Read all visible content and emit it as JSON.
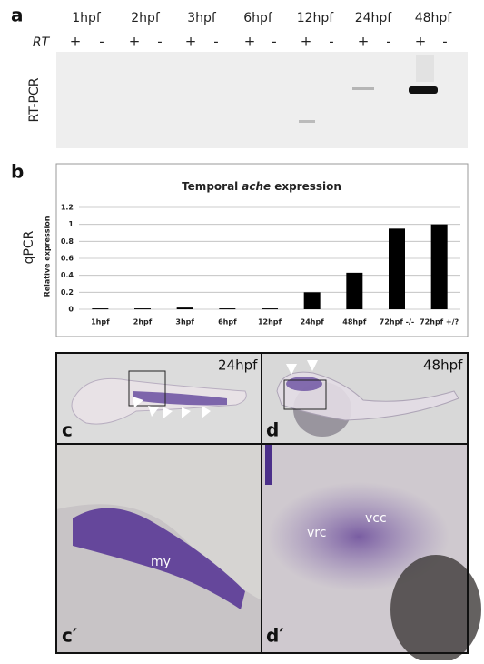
{
  "panel_a": {
    "letter": "a",
    "side_label": "RT-PCR",
    "row_label": "RT",
    "times": [
      "1hpf",
      "2hpf",
      "3hpf",
      "6hpf",
      "12hpf",
      "24hpf",
      "48hpf"
    ],
    "signs": [
      "+",
      "-",
      "+",
      "-",
      "+",
      "-",
      "+",
      "-",
      "+",
      "-",
      "+",
      "-",
      "+",
      "-"
    ]
  },
  "panel_b": {
    "letter": "b",
    "side_label": "qPCR"
  },
  "chart_data": {
    "type": "bar",
    "title_prefix": "Temporal",
    "title_italic": "ache",
    "title_suffix": "expression",
    "ylabel": "Relative expression",
    "categories": [
      "1hpf",
      "2hpf",
      "3hpf",
      "6hpf",
      "12hpf",
      "24hpf",
      "48hpf",
      "72hpf -/-",
      "72hpf +/?"
    ],
    "values": [
      0.01,
      0.01,
      0.02,
      0.01,
      0.01,
      0.2,
      0.43,
      0.95,
      1.0
    ],
    "color": "#000000",
    "ylim": [
      0,
      1.2
    ],
    "yticks": [
      0,
      0.2,
      0.4,
      0.6,
      0.8,
      1,
      1.2
    ],
    "grid": true
  },
  "images": {
    "c": {
      "letter": "c",
      "stage": "24hpf"
    },
    "d": {
      "letter": "d",
      "stage": "48hpf"
    },
    "c_prime": {
      "letter": "c′",
      "structure": "my"
    },
    "d_prime": {
      "letter": "d′",
      "structure_1": "vrc",
      "structure_2": "vcc"
    }
  }
}
